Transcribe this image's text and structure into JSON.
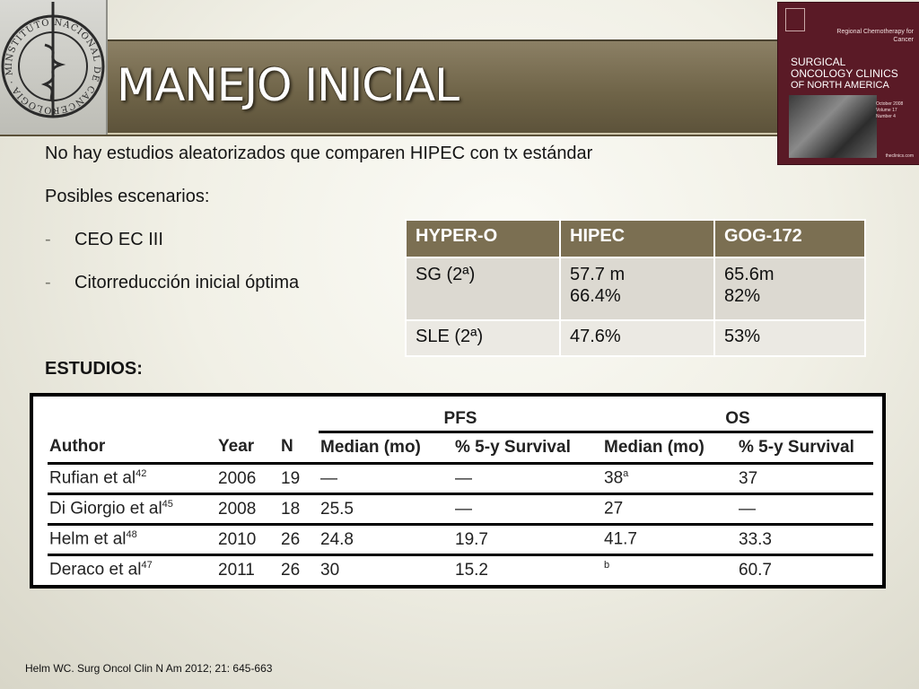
{
  "slide": {
    "title": "MANEJO INICIAL",
    "seal": {
      "ring_text": "INSTITUTO NACIONAL DE CANCEROLOGIA · México"
    },
    "cover": {
      "small_title": "Regional Chemotherapy for Cancer",
      "journal_line1": "SURGICAL",
      "journal_line2": "ONCOLOGY CLINICS",
      "journal_line3": "OF NORTH AMERICA",
      "issue": "October 2008 Volume 17 Number 4",
      "site": "theclinics.com"
    },
    "intro": "No hay estudios aleatorizados que comparen HIPEC con tx estándar",
    "scenarios_label": "Posibles  escenarios:",
    "bullets": [
      {
        "dash": "-",
        "text": "CEO EC III"
      },
      {
        "dash": "-",
        "text": "Citorreducción inicial óptima"
      }
    ],
    "studies_label": "ESTUDIOS:",
    "citation": "Helm WC. Surg Oncol Clin N Am 2012; 21: 645-663"
  },
  "summary_table": {
    "headers": [
      "HYPER-O",
      "HIPEC",
      "GOG-172"
    ],
    "rows": [
      {
        "label": "SG (2ª)",
        "hipec_l1": "57.7 m",
        "hipec_l2": "66.4%",
        "gog_l1": "65.6m",
        "gog_l2": "82%"
      },
      {
        "label": "SLE (2ª)",
        "hipec": "47.6%",
        "gog": "53%"
      }
    ]
  },
  "studies_table": {
    "group_pfs": "PFS",
    "group_os": "OS",
    "headers": [
      "Author",
      "Year",
      "N",
      "Median (mo)",
      "% 5-y Survival",
      "Median (mo)",
      "% 5-y Survival"
    ],
    "rows": [
      {
        "author": "Rufian et al",
        "ref": "42",
        "year": "2006",
        "n": "19",
        "pfs_median": "—",
        "pfs_5y": "—",
        "os_median": "38",
        "os_median_note": "a",
        "os_5y": "37"
      },
      {
        "author": "Di Giorgio et al",
        "ref": "45",
        "year": "2008",
        "n": "18",
        "pfs_median": "25.5",
        "pfs_5y": "—",
        "os_median": "27",
        "os_median_note": "",
        "os_5y": "—"
      },
      {
        "author": "Helm et al",
        "ref": "48",
        "year": "2010",
        "n": "26",
        "pfs_median": "24.8",
        "pfs_5y": "19.7",
        "os_median": "41.7",
        "os_median_note": "",
        "os_5y": "33.3"
      },
      {
        "author": "Deraco et al",
        "ref": "47",
        "year": "2011",
        "n": "26",
        "pfs_median": "30",
        "pfs_5y": "15.2",
        "os_median": "",
        "os_median_note": "b",
        "os_5y": "60.7"
      }
    ]
  },
  "colors": {
    "band": "#6f6448",
    "table_header": "#7b6f52",
    "row_light": "#dcd9d1",
    "row_lighter": "#ebe9e3",
    "cover": "#5a1a26"
  }
}
